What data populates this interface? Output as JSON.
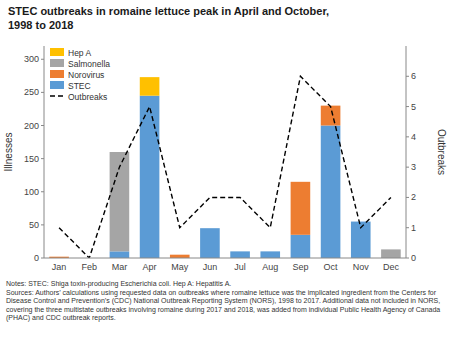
{
  "chart_data": {
    "type": "bar",
    "stacked": true,
    "title": "STEC outbreaks in romaine lettuce peak in April and October,",
    "subtitle": "1998 to 2018",
    "categories": [
      "Jan",
      "Feb",
      "Mar",
      "Apr",
      "May",
      "Jun",
      "Jul",
      "Aug",
      "Sep",
      "Oct",
      "Nov",
      "Dec"
    ],
    "series": [
      {
        "name": "STEC",
        "color": "#5B9BD5",
        "values": [
          0,
          0,
          10,
          245,
          0,
          45,
          10,
          10,
          35,
          200,
          55,
          0
        ]
      },
      {
        "name": "Norovirus",
        "color": "#ED7D31",
        "values": [
          2,
          0,
          0,
          0,
          5,
          0,
          0,
          0,
          80,
          30,
          0,
          0
        ]
      },
      {
        "name": "Salmonella",
        "color": "#A5A5A5",
        "values": [
          0,
          0,
          150,
          0,
          0,
          0,
          0,
          0,
          0,
          0,
          0,
          13
        ]
      },
      {
        "name": "Hep A",
        "color": "#FFC000",
        "values": [
          0,
          0,
          0,
          28,
          0,
          0,
          0,
          0,
          0,
          0,
          0,
          0
        ]
      },
      {
        "name": "Outbreaks",
        "type": "line",
        "axis": "y2",
        "color": "#000000",
        "line_style": "dashed",
        "values": [
          1,
          0,
          3,
          5,
          1,
          2,
          2,
          1,
          6,
          5,
          1,
          2
        ]
      }
    ],
    "ylabel": "Illnesses",
    "y2label": "Outbreaks",
    "ylim": [
      0,
      320
    ],
    "yticks": [
      0,
      50,
      100,
      150,
      200,
      250,
      300
    ],
    "y2lim": [
      0,
      7
    ],
    "y2ticks": [
      0,
      1,
      2,
      3,
      4,
      5,
      6
    ],
    "grid": false,
    "legend": "upper-left",
    "annotations": [
      "Notes: STEC: Shiga toxin-producing Escherichia coli. Hep A: Hepatitis A.",
      "Sources: Authors’ calculations using requested data on outbreaks where romaine lettuce was the implicated ingredient from the Centers for Disease Control and Prevention’s (CDC) National Outbreak Reporting System (NORS), 1998 to 2017. Additional data not included in NORS, covering the three multistate outbreaks involving romaine during 2017 and 2018, was added from individual Public Health Agency of Canada (PHAC) and CDC outbreak reports."
    ]
  }
}
